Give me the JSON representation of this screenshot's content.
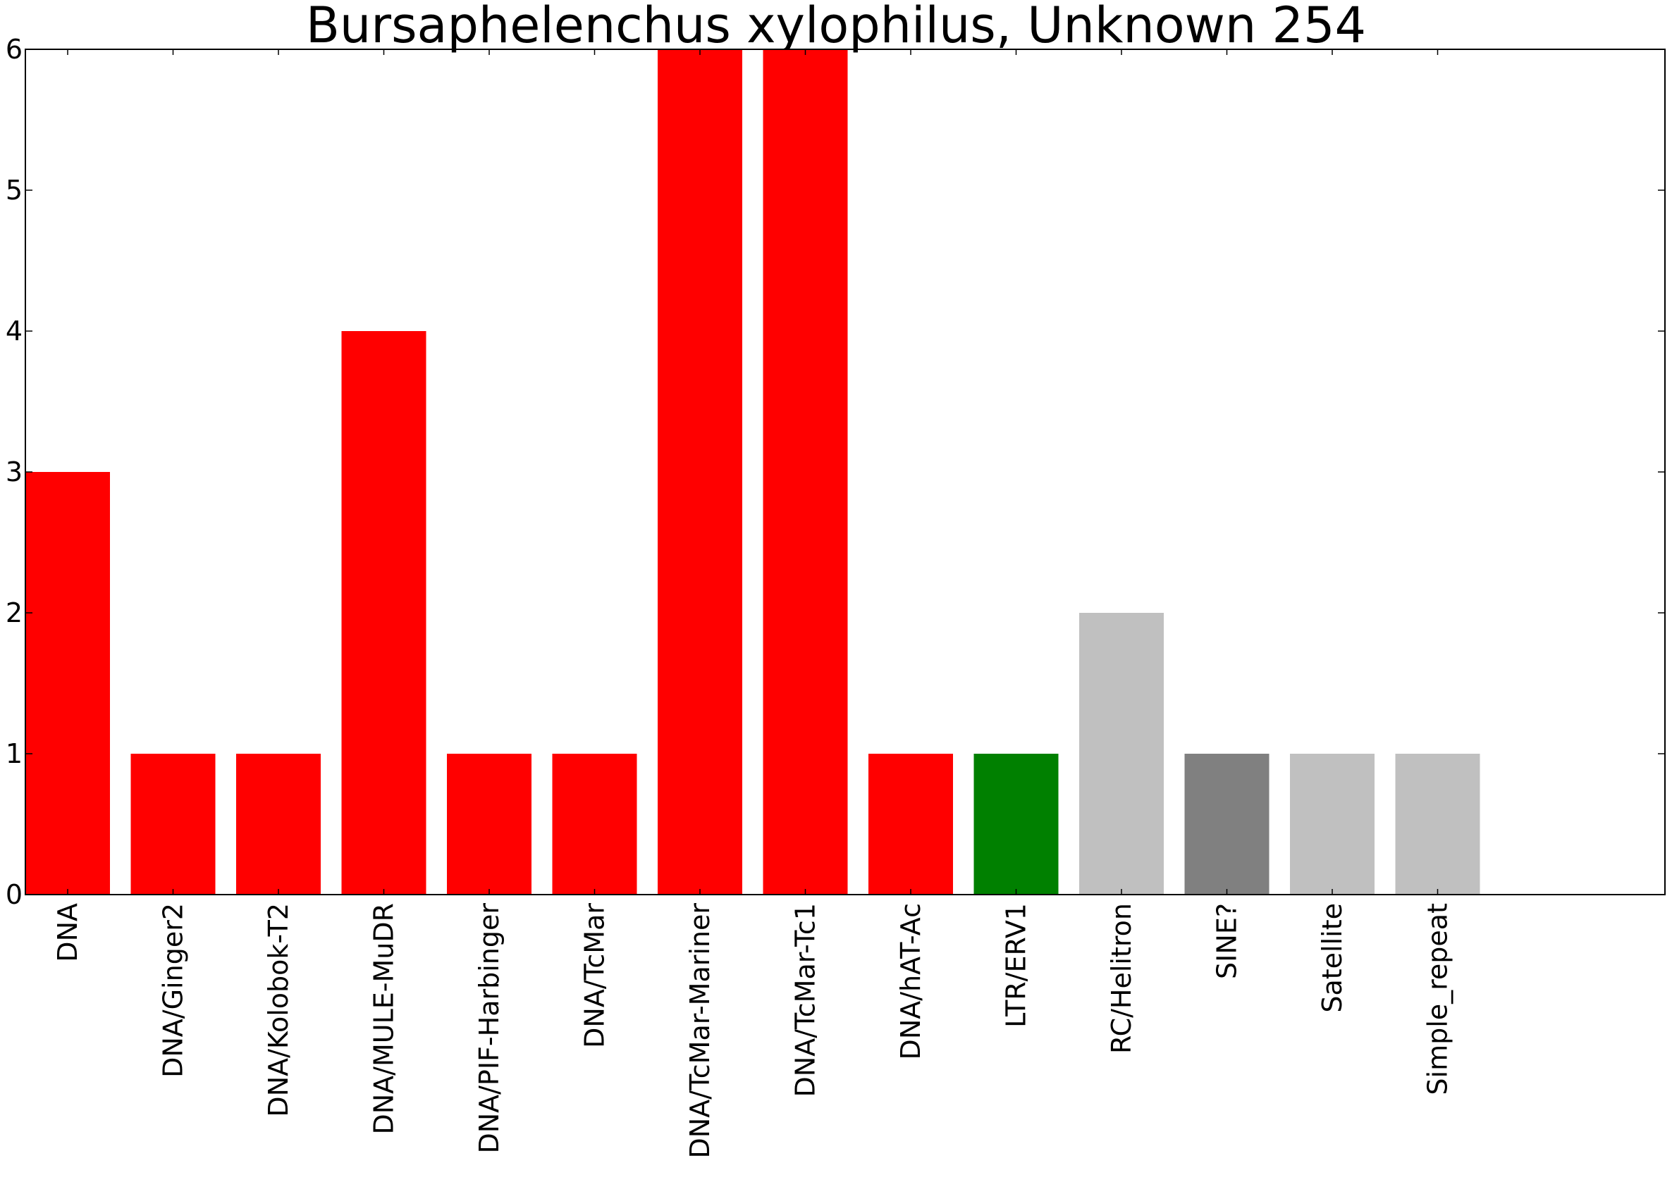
{
  "chart_data": {
    "type": "bar",
    "title": "Bursaphelenchus xylophilus, Unknown 254",
    "xlabel": "",
    "ylabel": "",
    "ylim": [
      0,
      6
    ],
    "yticks": [
      0,
      1,
      2,
      3,
      4,
      5,
      6
    ],
    "grid": false,
    "legend": "none",
    "categories": [
      "DNA",
      "DNA/Ginger2",
      "DNA/Kolobok-T2",
      "DNA/MULE-MuDR",
      "DNA/PIF-Harbinger",
      "DNA/TcMar",
      "DNA/TcMar-Mariner",
      "DNA/TcMar-Tc1",
      "DNA/hAT-Ac",
      "LTR/ERV1",
      "RC/Helitron",
      "SINE?",
      "Satellite",
      "Simple_repeat"
    ],
    "values": [
      3,
      1,
      1,
      4,
      1,
      1,
      6,
      6,
      1,
      1,
      2,
      1,
      1,
      1
    ],
    "colors": [
      "#ff0000",
      "#ff0000",
      "#ff0000",
      "#ff0000",
      "#ff0000",
      "#ff0000",
      "#ff0000",
      "#ff0000",
      "#ff0000",
      "#008000",
      "#c0c0c0",
      "#808080",
      "#c0c0c0",
      "#c0c0c0"
    ]
  }
}
